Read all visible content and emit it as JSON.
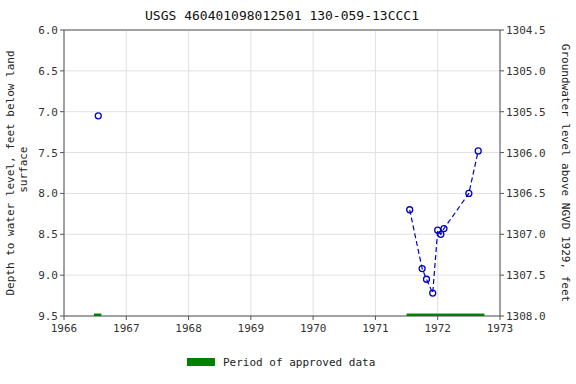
{
  "chart_data": {
    "type": "line",
    "title": "USGS 460401098012501 130-059-13CCC1",
    "ylabel": "Depth to water level, feet below land\n surface",
    "y2label": "Groundwater level above NGVD 1929, feet",
    "xlim": [
      1966,
      1973
    ],
    "xticks": [
      1966,
      1967,
      1968,
      1969,
      1970,
      1971,
      1972,
      1973
    ],
    "ylim": [
      9.5,
      6.0
    ],
    "yticks": [
      {
        "value": 6.0,
        "label": "6.0"
      },
      6.5,
      {
        "value": 7.0,
        "label": "7.0"
      },
      7.5,
      {
        "value": 8.0,
        "label": "8.0"
      },
      8.5,
      {
        "value": 9.0,
        "label": "9.0"
      },
      9.5
    ],
    "y2lim": [
      1308.0,
      1304.5
    ],
    "y2ticks": [
      {
        "value": 1308.0,
        "label": "1308.0"
      },
      1307.5,
      {
        "value": 1307.0,
        "label": "1307.0"
      },
      1306.5,
      {
        "value": 1306.0,
        "label": "1306.0"
      },
      1305.5,
      {
        "value": 1305.0,
        "label": "1305.0"
      },
      1304.5
    ],
    "grid": true,
    "legend": "bottom",
    "series": [
      {
        "x": [
          1971.55,
          1971.75,
          1971.82,
          1971.92,
          1972.0,
          1972.05,
          1972.1,
          1972.5,
          1972.65
        ],
        "values": [
          8.2,
          8.92,
          9.05,
          9.22,
          8.45,
          8.5,
          8.43,
          8.0,
          7.48
        ],
        "color": "#0000CC",
        "line_style": "dashed",
        "marker": "circle"
      },
      {
        "x": [
          1966.55
        ],
        "values": [
          7.05
        ],
        "color": "#0000CC",
        "line_style": "none",
        "marker": "circle"
      },
      {
        "name": "Period of approved data",
        "type": "bar",
        "orientation": "horizontal",
        "color": "#008000",
        "y": 9.5,
        "height": 0.06,
        "x_start": [
          1966.48,
          1971.5
        ],
        "x_end": [
          1966.6,
          1972.75
        ]
      }
    ]
  }
}
